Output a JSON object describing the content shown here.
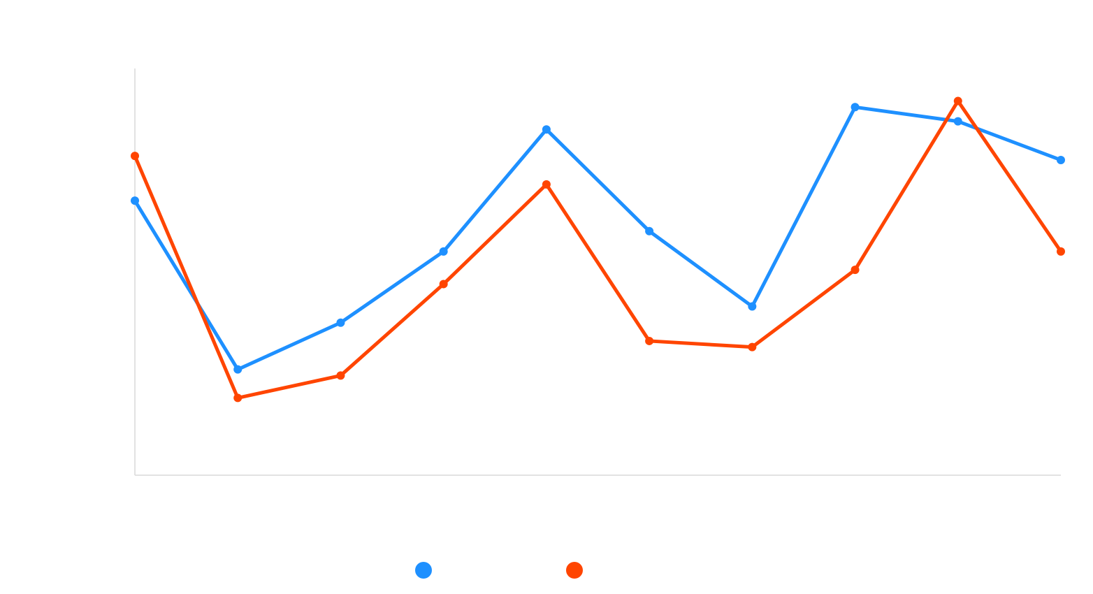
{
  "chart_data": {
    "type": "line",
    "x": [
      1,
      2,
      3,
      4,
      5,
      6,
      7,
      8,
      9,
      10
    ],
    "series": [
      {
        "color": "#1E90FF",
        "values": [
          67.5,
          26.0,
          37.5,
          55.0,
          85.0,
          60.0,
          41.5,
          90.5,
          87.0,
          77.5
        ]
      },
      {
        "color": "#FF4500",
        "values": [
          78.5,
          19.0,
          24.5,
          47.0,
          71.5,
          33.0,
          31.5,
          50.5,
          92.0,
          55.0
        ]
      }
    ],
    "ylim": [
      0,
      100
    ],
    "grid": false,
    "legend": "bottom",
    "axes_color": "#D9D9D9"
  }
}
